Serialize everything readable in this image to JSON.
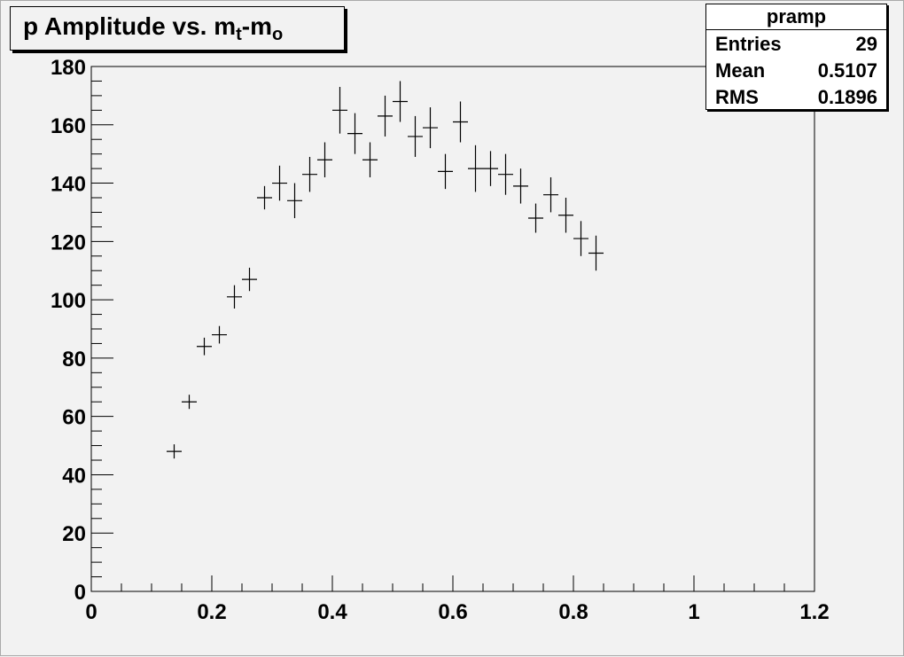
{
  "title": {
    "main": "p Amplitude vs. m",
    "sub1": "t",
    "dash": "-m",
    "sub2": "o"
  },
  "stats": {
    "name": "pramp",
    "rows": [
      {
        "label": "Entries",
        "value": "29"
      },
      {
        "label": "Mean",
        "value": "0.5107"
      },
      {
        "label": "RMS",
        "value": "0.1896"
      }
    ]
  },
  "chart_data": {
    "type": "scatter",
    "xlim": [
      0,
      1.2
    ],
    "ylim": [
      0,
      180
    ],
    "x_ticks": [
      "0",
      "0.2",
      "0.4",
      "0.6",
      "0.8",
      "1",
      "1.2"
    ],
    "y_ticks": [
      "0",
      "20",
      "40",
      "60",
      "80",
      "100",
      "120",
      "140",
      "160",
      "180"
    ],
    "x_tick_values": [
      0,
      0.2,
      0.4,
      0.6,
      0.8,
      1.0,
      1.2
    ],
    "y_tick_values": [
      0,
      20,
      40,
      60,
      80,
      100,
      120,
      140,
      160,
      180
    ],
    "grid": false,
    "points": [
      {
        "x": 0.1375,
        "y": 48,
        "yerr": 0.5
      },
      {
        "x": 0.1625,
        "y": 65,
        "yerr": 2
      },
      {
        "x": 0.1875,
        "y": 84,
        "yerr": 3
      },
      {
        "x": 0.2125,
        "y": 88,
        "yerr": 3
      },
      {
        "x": 0.2375,
        "y": 101,
        "yerr": 4
      },
      {
        "x": 0.2625,
        "y": 107,
        "yerr": 4
      },
      {
        "x": 0.2875,
        "y": 135,
        "yerr": 4
      },
      {
        "x": 0.3125,
        "y": 140,
        "yerr": 6
      },
      {
        "x": 0.3375,
        "y": 134,
        "yerr": 6
      },
      {
        "x": 0.3625,
        "y": 143,
        "yerr": 6
      },
      {
        "x": 0.3875,
        "y": 148,
        "yerr": 6
      },
      {
        "x": 0.4125,
        "y": 165,
        "yerr": 8
      },
      {
        "x": 0.4375,
        "y": 157,
        "yerr": 7
      },
      {
        "x": 0.4625,
        "y": 148,
        "yerr": 6
      },
      {
        "x": 0.4875,
        "y": 163,
        "yerr": 7
      },
      {
        "x": 0.5125,
        "y": 168,
        "yerr": 7
      },
      {
        "x": 0.5375,
        "y": 156,
        "yerr": 7
      },
      {
        "x": 0.5625,
        "y": 159,
        "yerr": 7
      },
      {
        "x": 0.5875,
        "y": 144,
        "yerr": 6
      },
      {
        "x": 0.6125,
        "y": 161,
        "yerr": 7
      },
      {
        "x": 0.6375,
        "y": 145,
        "yerr": 8
      },
      {
        "x": 0.6625,
        "y": 145,
        "yerr": 6
      },
      {
        "x": 0.6875,
        "y": 143,
        "yerr": 7
      },
      {
        "x": 0.7125,
        "y": 139,
        "yerr": 6
      },
      {
        "x": 0.7375,
        "y": 128,
        "yerr": 5
      },
      {
        "x": 0.7625,
        "y": 136,
        "yerr": 6
      },
      {
        "x": 0.7875,
        "y": 129,
        "yerr": 6
      },
      {
        "x": 0.8125,
        "y": 121,
        "yerr": 6
      },
      {
        "x": 0.8375,
        "y": 116,
        "yerr": 6
      }
    ]
  }
}
